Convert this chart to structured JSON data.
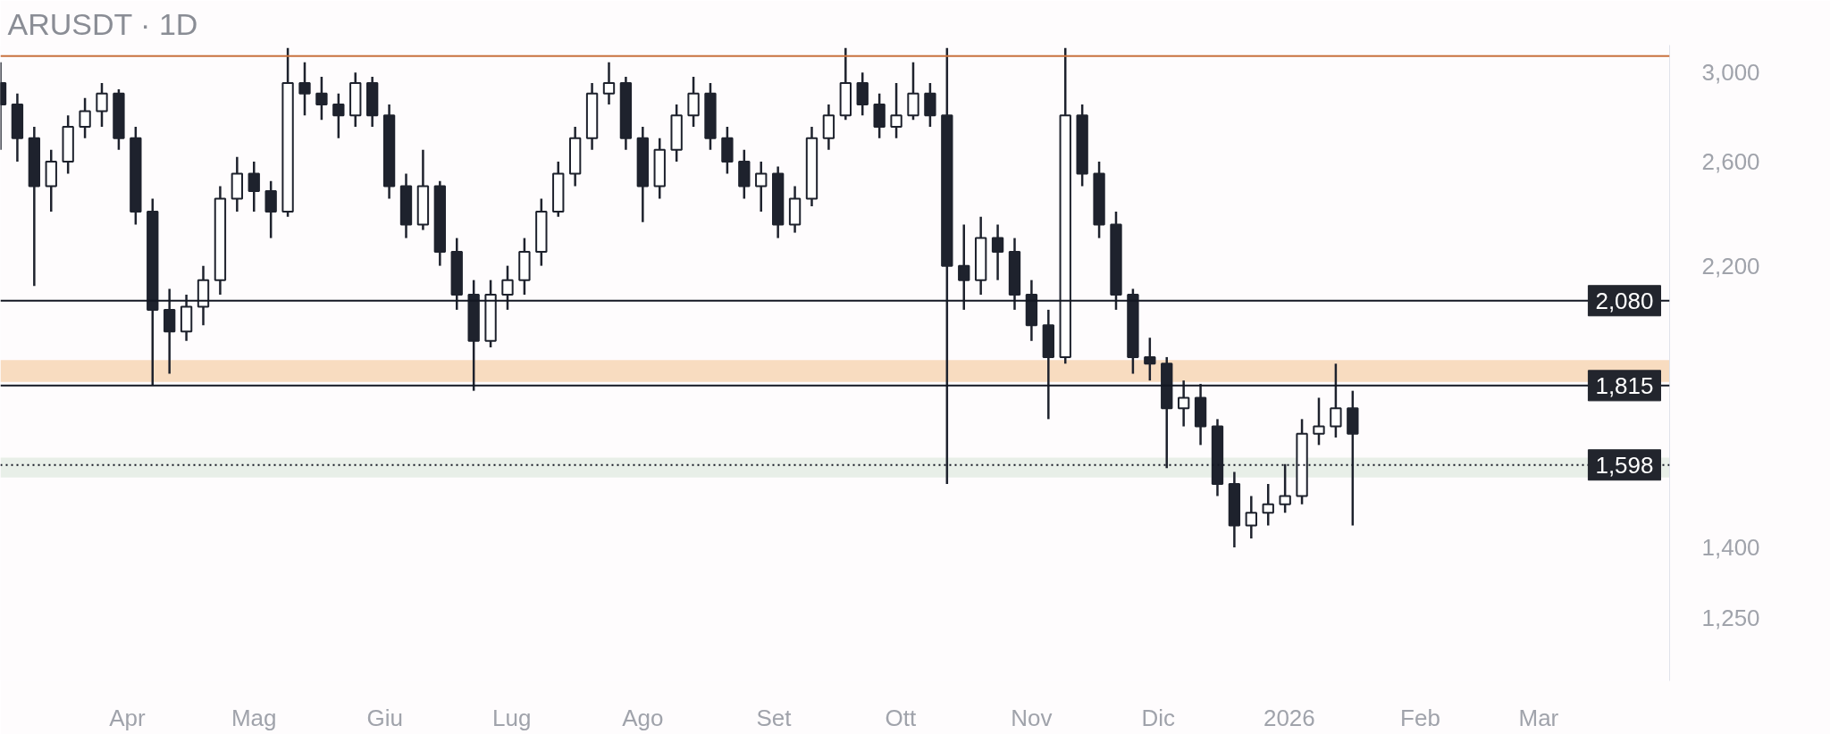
{
  "chart_data": {
    "type": "candlestick",
    "title": "ARUSDT · 1D",
    "color": "#1e222d",
    "log": true,
    "grid": false,
    "xlim": [
      "2025-03-02",
      "2026-04-01"
    ],
    "ylim": [
      1130,
      3135
    ],
    "xticks": [
      {
        "value": "2025-04-01",
        "label": "Apr"
      },
      {
        "value": "2025-05-01",
        "label": "Mag"
      },
      {
        "value": "2025-06-01",
        "label": "Giu"
      },
      {
        "value": "2025-07-01",
        "label": "Lug"
      },
      {
        "value": "2025-08-01",
        "label": "Ago"
      },
      {
        "value": "2025-09-01",
        "label": "Set"
      },
      {
        "value": "2025-10-01",
        "label": "Ott"
      },
      {
        "value": "2025-11-01",
        "label": "Nov"
      },
      {
        "value": "2025-12-01",
        "label": "Dic"
      },
      {
        "value": "2026-01-01",
        "label": "2026"
      },
      {
        "value": "2026-02-01",
        "label": "Feb"
      },
      {
        "value": "2026-03-01",
        "label": "Mar"
      }
    ],
    "yticks": [
      {
        "value": 1250,
        "label": "1,250"
      },
      {
        "value": 1400,
        "label": "1,400"
      },
      {
        "value": 2200,
        "label": "2,200"
      },
      {
        "value": 2600,
        "label": "2,600"
      },
      {
        "value": 3000,
        "label": "3,000"
      }
    ],
    "ref_lines": [
      {
        "axis": "y",
        "value": 3080,
        "label": null,
        "color": "#c8723e",
        "line_style": "solid"
      },
      {
        "axis": "y",
        "value": 2080,
        "label": "2,080",
        "color": "#131722",
        "line_style": "solid"
      },
      {
        "axis": "y",
        "value": 1815,
        "label": "1,815",
        "color": "#131722",
        "line_style": "solid"
      },
      {
        "axis": "y",
        "value": 1598,
        "label": "1,598",
        "color": "#131722",
        "line_style": "dotted"
      }
    ],
    "bands": [
      {
        "axis": "y",
        "from": 1826,
        "to": 1891,
        "label": null,
        "color": "#f8dcc0"
      },
      {
        "axis": "y",
        "from": 1566,
        "to": 1617,
        "label": null,
        "color": "#e8efe8"
      }
    ],
    "x": [
      "2025-03-02",
      "2025-03-06",
      "2025-03-10",
      "2025-03-14",
      "2025-03-18",
      "2025-03-22",
      "2025-03-26",
      "2025-03-30",
      "2025-04-03",
      "2025-04-07",
      "2025-04-11",
      "2025-04-15",
      "2025-04-19",
      "2025-04-23",
      "2025-04-27",
      "2025-05-01",
      "2025-05-05",
      "2025-05-09",
      "2025-05-13",
      "2025-05-17",
      "2025-05-21",
      "2025-05-25",
      "2025-05-29",
      "2025-06-02",
      "2025-06-06",
      "2025-06-10",
      "2025-06-14",
      "2025-06-18",
      "2025-06-22",
      "2025-06-26",
      "2025-06-30",
      "2025-07-04",
      "2025-07-08",
      "2025-07-12",
      "2025-07-16",
      "2025-07-20",
      "2025-07-24",
      "2025-07-28",
      "2025-08-01",
      "2025-08-05",
      "2025-08-09",
      "2025-08-13",
      "2025-08-17",
      "2025-08-21",
      "2025-08-25",
      "2025-08-29",
      "2025-09-02",
      "2025-09-06",
      "2025-09-10",
      "2025-09-14",
      "2025-09-18",
      "2025-09-22",
      "2025-09-26",
      "2025-09-30",
      "2025-10-04",
      "2025-10-08",
      "2025-10-12",
      "2025-10-16",
      "2025-10-20",
      "2025-10-24",
      "2025-10-28",
      "2025-11-01",
      "2025-11-05",
      "2025-11-09",
      "2025-11-13",
      "2025-11-17",
      "2025-11-21",
      "2025-11-25",
      "2025-11-29",
      "2025-12-03",
      "2025-12-07",
      "2025-12-11",
      "2025-12-15",
      "2025-12-19",
      "2025-12-23",
      "2025-12-27",
      "2025-12-31",
      "2026-01-04",
      "2026-01-08",
      "2026-01-12",
      "2026-01-16"
    ],
    "ohlc": [
      [
        2950,
        3050,
        2650,
        2850
      ],
      [
        2850,
        2900,
        2600,
        2700
      ],
      [
        2700,
        2750,
        2130,
        2500
      ],
      [
        2500,
        2650,
        2400,
        2600
      ],
      [
        2600,
        2800,
        2550,
        2750
      ],
      [
        2750,
        2880,
        2700,
        2820
      ],
      [
        2820,
        2950,
        2750,
        2900
      ],
      [
        2900,
        2920,
        2650,
        2700
      ],
      [
        2700,
        2750,
        2350,
        2400
      ],
      [
        2400,
        2450,
        1815,
        2050
      ],
      [
        2050,
        2120,
        1850,
        1980
      ],
      [
        1980,
        2100,
        1950,
        2060
      ],
      [
        2060,
        2200,
        2000,
        2150
      ],
      [
        2150,
        2500,
        2100,
        2450
      ],
      [
        2450,
        2620,
        2400,
        2550
      ],
      [
        2550,
        2600,
        2400,
        2480
      ],
      [
        2480,
        2520,
        2300,
        2400
      ],
      [
        2400,
        3120,
        2380,
        2950
      ],
      [
        2950,
        3050,
        2800,
        2900
      ],
      [
        2900,
        2980,
        2780,
        2850
      ],
      [
        2850,
        2900,
        2700,
        2800
      ],
      [
        2800,
        3000,
        2750,
        2950
      ],
      [
        2950,
        2980,
        2750,
        2800
      ],
      [
        2800,
        2850,
        2450,
        2500
      ],
      [
        2500,
        2550,
        2300,
        2350
      ],
      [
        2350,
        2650,
        2330,
        2500
      ],
      [
        2500,
        2520,
        2200,
        2250
      ],
      [
        2250,
        2300,
        2050,
        2100
      ],
      [
        2100,
        2150,
        1800,
        1950
      ],
      [
        1950,
        2150,
        1930,
        2100
      ],
      [
        2100,
        2200,
        2050,
        2150
      ],
      [
        2150,
        2300,
        2100,
        2250
      ],
      [
        2250,
        2450,
        2200,
        2400
      ],
      [
        2400,
        2600,
        2380,
        2550
      ],
      [
        2550,
        2750,
        2500,
        2700
      ],
      [
        2700,
        2950,
        2650,
        2900
      ],
      [
        2900,
        3050,
        2850,
        2950
      ],
      [
        2950,
        2980,
        2650,
        2700
      ],
      [
        2700,
        2750,
        2360,
        2500
      ],
      [
        2500,
        2700,
        2450,
        2650
      ],
      [
        2650,
        2850,
        2600,
        2800
      ],
      [
        2800,
        2980,
        2750,
        2900
      ],
      [
        2900,
        2950,
        2650,
        2700
      ],
      [
        2700,
        2750,
        2550,
        2600
      ],
      [
        2600,
        2650,
        2450,
        2500
      ],
      [
        2500,
        2600,
        2400,
        2550
      ],
      [
        2550,
        2580,
        2300,
        2350
      ],
      [
        2350,
        2500,
        2320,
        2450
      ],
      [
        2450,
        2750,
        2420,
        2700
      ],
      [
        2700,
        2850,
        2650,
        2800
      ],
      [
        2800,
        3120,
        2780,
        2950
      ],
      [
        2950,
        3000,
        2800,
        2850
      ],
      [
        2850,
        2900,
        2700,
        2750
      ],
      [
        2750,
        2950,
        2700,
        2800
      ],
      [
        2800,
        3050,
        2780,
        2900
      ],
      [
        2900,
        2950,
        2750,
        2800
      ],
      [
        2800,
        3120,
        1550,
        2200
      ],
      [
        2200,
        2350,
        2050,
        2150
      ],
      [
        2150,
        2380,
        2100,
        2300
      ],
      [
        2300,
        2350,
        2150,
        2250
      ],
      [
        2250,
        2300,
        2050,
        2100
      ],
      [
        2100,
        2150,
        1950,
        2000
      ],
      [
        2000,
        2050,
        1720,
        1900
      ],
      [
        1900,
        3120,
        1880,
        2800
      ],
      [
        2800,
        2850,
        2500,
        2550
      ],
      [
        2550,
        2600,
        2300,
        2350
      ],
      [
        2350,
        2400,
        2050,
        2100
      ],
      [
        2100,
        2120,
        1850,
        1900
      ],
      [
        1900,
        1960,
        1830,
        1880
      ],
      [
        1880,
        1900,
        1590,
        1750
      ],
      [
        1750,
        1830,
        1700,
        1780
      ],
      [
        1780,
        1820,
        1650,
        1700
      ],
      [
        1700,
        1720,
        1520,
        1550
      ],
      [
        1550,
        1580,
        1400,
        1450
      ],
      [
        1450,
        1520,
        1420,
        1480
      ],
      [
        1480,
        1550,
        1450,
        1500
      ],
      [
        1500,
        1600,
        1480,
        1520
      ],
      [
        1520,
        1720,
        1500,
        1680
      ],
      [
        1680,
        1780,
        1650,
        1700
      ],
      [
        1700,
        1880,
        1670,
        1750
      ],
      [
        1750,
        1800,
        1450,
        1680
      ]
    ]
  }
}
